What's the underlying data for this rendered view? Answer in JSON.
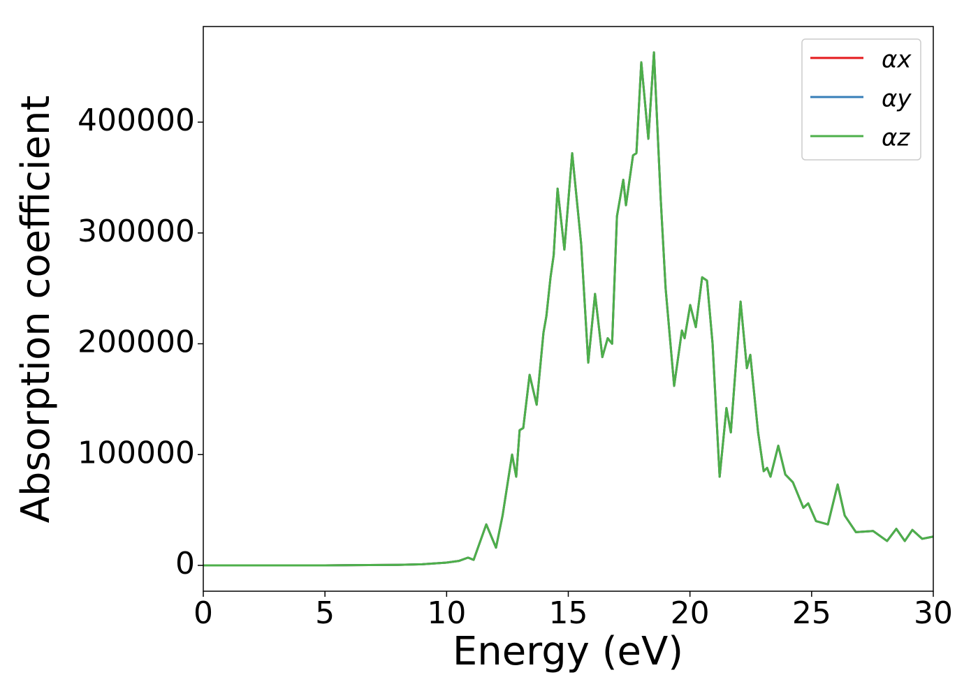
{
  "chart_data": {
    "type": "line",
    "x_label": "Energy (eV)",
    "y_label": "Absorption coefficient",
    "x": [
      0,
      5,
      8,
      9,
      10,
      10.5,
      10.88,
      11.11,
      11.63,
      12.03,
      12.3,
      12.69,
      12.86,
      13.0,
      13.15,
      13.41,
      13.7,
      13.98,
      14.1,
      14.27,
      14.4,
      14.56,
      14.84,
      15.16,
      15.53,
      15.82,
      16.1,
      16.4,
      16.62,
      16.8,
      17.0,
      17.26,
      17.37,
      17.66,
      17.8,
      18.0,
      18.29,
      18.52,
      18.8,
      19.0,
      19.35,
      19.67,
      19.78,
      20.01,
      20.24,
      20.5,
      20.7,
      20.93,
      21.22,
      21.5,
      21.68,
      22.08,
      22.34,
      22.48,
      22.8,
      23.03,
      23.17,
      23.31,
      23.63,
      23.92,
      24.23,
      24.66,
      24.86,
      25.18,
      25.67,
      26.07,
      26.36,
      26.82,
      27.53,
      28.1,
      28.48,
      28.83,
      29.14,
      29.54,
      30
    ],
    "series": [
      {
        "name": "αx",
        "color": "#e41a1c",
        "values": [
          0,
          0,
          500,
          1000,
          2500,
          4000,
          7000,
          5000,
          37000,
          16000,
          45000,
          100000,
          80000,
          122000,
          124000,
          172000,
          145000,
          210000,
          225000,
          260000,
          280000,
          340000,
          285000,
          372000,
          290000,
          183000,
          245000,
          188000,
          205000,
          200000,
          315000,
          348000,
          325000,
          370000,
          372000,
          454000,
          385000,
          463000,
          330000,
          250000,
          162000,
          212000,
          205000,
          235000,
          215000,
          260000,
          257000,
          200000,
          80000,
          142000,
          120000,
          238000,
          178000,
          190000,
          120000,
          85000,
          88000,
          80000,
          108000,
          82000,
          75000,
          52000,
          56000,
          40000,
          37000,
          73000,
          45000,
          30000,
          31000,
          22000,
          33000,
          22000,
          32000,
          24000,
          26000
        ]
      },
      {
        "name": "αy",
        "color": "#377eb8",
        "values": [
          0,
          0,
          500,
          1000,
          2500,
          4000,
          7000,
          5000,
          37000,
          16000,
          45000,
          100000,
          80000,
          122000,
          124000,
          172000,
          145000,
          210000,
          225000,
          260000,
          280000,
          340000,
          285000,
          372000,
          290000,
          183000,
          245000,
          188000,
          205000,
          200000,
          315000,
          348000,
          325000,
          370000,
          372000,
          454000,
          385000,
          463000,
          330000,
          250000,
          162000,
          212000,
          205000,
          235000,
          215000,
          260000,
          257000,
          200000,
          80000,
          142000,
          120000,
          238000,
          178000,
          190000,
          120000,
          85000,
          88000,
          80000,
          108000,
          82000,
          75000,
          52000,
          56000,
          40000,
          37000,
          73000,
          45000,
          30000,
          31000,
          22000,
          33000,
          22000,
          32000,
          24000,
          26000
        ]
      },
      {
        "name": "αz",
        "color": "#4daf4a",
        "values": [
          0,
          0,
          500,
          1000,
          2500,
          4000,
          7000,
          5000,
          37000,
          16000,
          45000,
          100000,
          80000,
          122000,
          124000,
          172000,
          145000,
          210000,
          225000,
          260000,
          280000,
          340000,
          285000,
          372000,
          290000,
          183000,
          245000,
          188000,
          205000,
          200000,
          315000,
          348000,
          325000,
          370000,
          372000,
          454000,
          385000,
          463000,
          330000,
          250000,
          162000,
          212000,
          205000,
          235000,
          215000,
          260000,
          257000,
          200000,
          80000,
          142000,
          120000,
          238000,
          178000,
          190000,
          120000,
          85000,
          88000,
          80000,
          108000,
          82000,
          75000,
          52000,
          56000,
          40000,
          37000,
          73000,
          45000,
          30000,
          31000,
          22000,
          33000,
          22000,
          32000,
          24000,
          26000
        ]
      }
    ],
    "xlim": [
      0,
      30
    ],
    "xticks": [
      0,
      5,
      10,
      15,
      20,
      25,
      30
    ],
    "ylim": [
      -23300,
      486300
    ],
    "yticks": [
      0,
      100000,
      200000,
      300000,
      400000
    ],
    "grid": false,
    "legend": "upper right"
  }
}
